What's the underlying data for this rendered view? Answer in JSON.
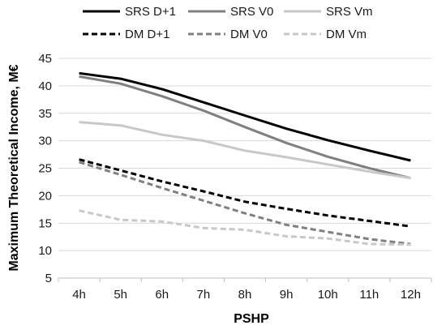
{
  "chart_data": {
    "type": "line",
    "title": "",
    "xlabel": "PSHP",
    "ylabel": "Maximum Theoretical Income, M€",
    "categories": [
      "4h",
      "5h",
      "6h",
      "7h",
      "8h",
      "9h",
      "10h",
      "11h",
      "12h"
    ],
    "ylim": [
      5,
      45
    ],
    "yticks": [
      5,
      10,
      15,
      20,
      25,
      30,
      35,
      40,
      45
    ],
    "grid": true,
    "legend_position": "top",
    "series": [
      {
        "name": "SRS D+1",
        "color": "#000000",
        "dash": "solid",
        "values": [
          42.3,
          41.3,
          39.4,
          37.0,
          34.6,
          32.2,
          30.1,
          28.2,
          26.4
        ]
      },
      {
        "name": "SRS V0",
        "color": "#808080",
        "dash": "solid",
        "values": [
          41.7,
          40.4,
          38.1,
          35.5,
          32.5,
          29.6,
          27.1,
          25.0,
          23.2
        ]
      },
      {
        "name": "SRS Vm",
        "color": "#c8c8c8",
        "dash": "solid",
        "values": [
          33.4,
          32.8,
          31.1,
          30.0,
          28.2,
          27.0,
          25.7,
          24.4,
          23.2
        ]
      },
      {
        "name": "DM D+1",
        "color": "#000000",
        "dash": "dashed",
        "values": [
          26.6,
          24.6,
          22.6,
          20.8,
          18.9,
          17.6,
          16.4,
          15.4,
          14.4
        ]
      },
      {
        "name": "DM V0",
        "color": "#808080",
        "dash": "dashed",
        "values": [
          26.1,
          23.8,
          21.4,
          19.1,
          16.8,
          14.7,
          13.4,
          12.1,
          11.2
        ]
      },
      {
        "name": "DM Vm",
        "color": "#c8c8c8",
        "dash": "dashed",
        "values": [
          17.3,
          15.6,
          15.3,
          14.1,
          13.8,
          12.6,
          12.2,
          11.2,
          11.1
        ]
      }
    ]
  }
}
